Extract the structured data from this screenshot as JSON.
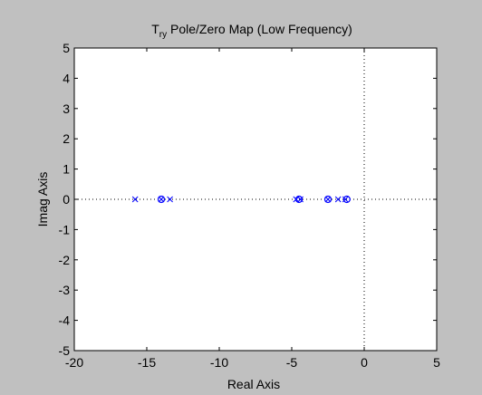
{
  "chart_data": {
    "type": "scatter",
    "title": {
      "main": "T",
      "subscript": "ry",
      "rest": " Pole/Zero Map (Low Frequency)"
    },
    "xlabel": "Real Axis",
    "ylabel": "Imag Axis",
    "xlim": [
      -20,
      5
    ],
    "ylim": [
      -5,
      5
    ],
    "xticks": [
      "-20",
      "-15",
      "-10",
      "-5",
      "0",
      "5"
    ],
    "xtick_values": [
      -20,
      -15,
      -10,
      -5,
      0,
      5
    ],
    "yticks": [
      "-5",
      "-4",
      "-3",
      "-2",
      "-1",
      "0",
      "1",
      "2",
      "3",
      "4",
      "5"
    ],
    "ytick_values": [
      -5,
      -4,
      -3,
      -2,
      -1,
      0,
      1,
      2,
      3,
      4,
      5
    ],
    "grid": false,
    "reference_lines": {
      "x": 0,
      "y": 0,
      "style": "dotted"
    },
    "series": [
      {
        "name": "poles",
        "marker": "x",
        "points": [
          {
            "x": -15.8,
            "y": 0
          },
          {
            "x": -14.0,
            "y": 0
          },
          {
            "x": -13.4,
            "y": 0
          },
          {
            "x": -4.7,
            "y": 0
          },
          {
            "x": -4.4,
            "y": 0
          },
          {
            "x": -2.5,
            "y": 0
          },
          {
            "x": -1.8,
            "y": 0
          },
          {
            "x": -1.3,
            "y": 0
          }
        ]
      },
      {
        "name": "zeros",
        "marker": "o",
        "points": [
          {
            "x": -14.0,
            "y": 0
          },
          {
            "x": -4.5,
            "y": 0
          },
          {
            "x": -2.5,
            "y": 0
          },
          {
            "x": -1.2,
            "y": 0
          }
        ]
      }
    ],
    "colors": {
      "marker": "#0000ff",
      "axes_bg": "#ffffff",
      "figure_bg": "#c0c0c0"
    }
  }
}
